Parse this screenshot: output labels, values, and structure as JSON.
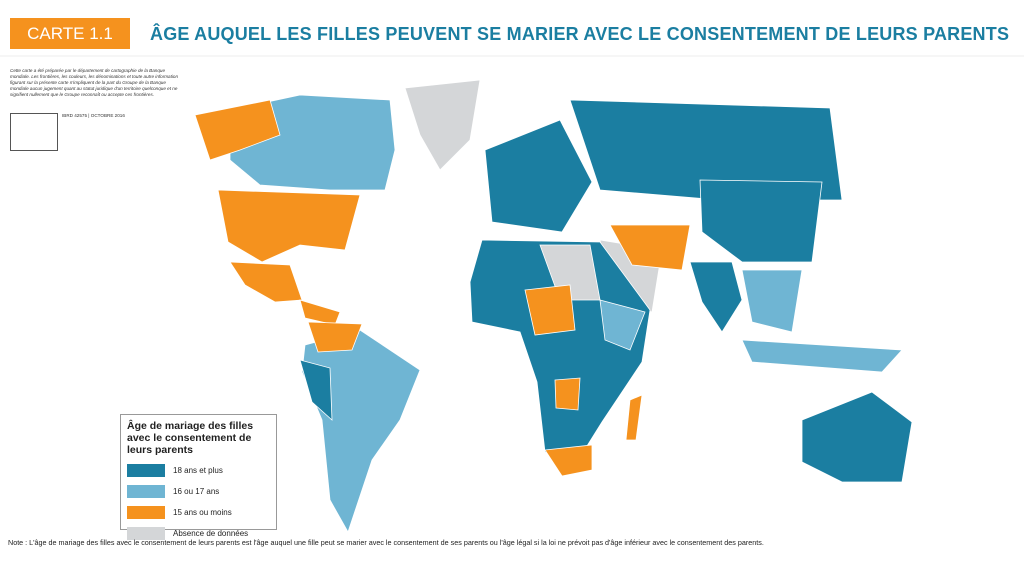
{
  "header": {
    "label": "CARTE 1.1",
    "title": "ÂGE AUQUEL LES FILLES PEUVENT SE MARIER AVEC LE CONSENTEMENT DE LEURS PARENTS"
  },
  "disclaimer": "Cette carte a été préparée par le département de cartographie de la Banque mondiale. Les frontières, les couleurs, les dénominations et toute autre information figurant sur la présente carte n'impliquent de la part du Groupe de la Banque mondiale aucun jugement quant au statut juridique d'un territoire quelconque et ne signifient nullement que le Groupe reconnaît ou accepte ces frontières.",
  "map_code": "IBRD 42575 | OCTOBRE 2016",
  "legend": {
    "title": "Âge de mariage des filles avec le consentement de leurs parents",
    "items": [
      {
        "label": "18 ans et plus",
        "color": "#1b7ea1"
      },
      {
        "label": "16 ou 17 ans",
        "color": "#6fb5d3"
      },
      {
        "label": "15 ans ou moins",
        "color": "#f5921e"
      },
      {
        "label": "Absence de données",
        "color": "#d4d6d8"
      }
    ]
  },
  "note": "Note : L'âge de mariage des filles avec le consentement de leurs parents est l'âge auquel une fille peut se marier avec le consentement de ses parents ou l'âge légal si la loi ne prévoit pas d'âge inférieur avec le consentement des parents."
}
